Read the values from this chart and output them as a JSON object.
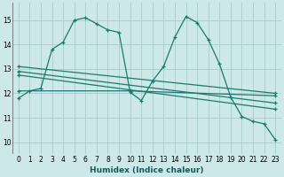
{
  "xlabel": "Humidex (Indice chaleur)",
  "bg_color": "#cce8e8",
  "grid_color": "#aacccc",
  "line_color": "#1a7a6e",
  "xlim": [
    -0.5,
    23.5
  ],
  "ylim": [
    9.5,
    15.7
  ],
  "yticks": [
    10,
    11,
    12,
    13,
    14,
    15
  ],
  "xticks": [
    0,
    1,
    2,
    3,
    4,
    5,
    6,
    7,
    8,
    9,
    10,
    11,
    12,
    13,
    14,
    15,
    16,
    17,
    18,
    19,
    20,
    21,
    22,
    23
  ],
  "series1_x": [
    0,
    1,
    2,
    3,
    4,
    5,
    6,
    7,
    8,
    9,
    10,
    11,
    12,
    13,
    14,
    15,
    16,
    17,
    18,
    19,
    20,
    21,
    22,
    23
  ],
  "series1_y": [
    11.8,
    12.1,
    12.2,
    13.8,
    14.1,
    15.0,
    15.1,
    14.85,
    14.6,
    14.5,
    12.05,
    11.7,
    12.5,
    13.1,
    14.3,
    15.15,
    14.9,
    14.2,
    13.2,
    11.85,
    11.05,
    10.85,
    10.75,
    10.1
  ],
  "series2_x": [
    0,
    23
  ],
  "series2_y": [
    13.1,
    12.0
  ],
  "series3_x": [
    0,
    23
  ],
  "series3_y": [
    12.9,
    11.6
  ],
  "series4_x": [
    0,
    23
  ],
  "series4_y": [
    12.75,
    11.35
  ],
  "series5_x": [
    0,
    10,
    23
  ],
  "series5_y": [
    12.1,
    12.1,
    11.9
  ]
}
